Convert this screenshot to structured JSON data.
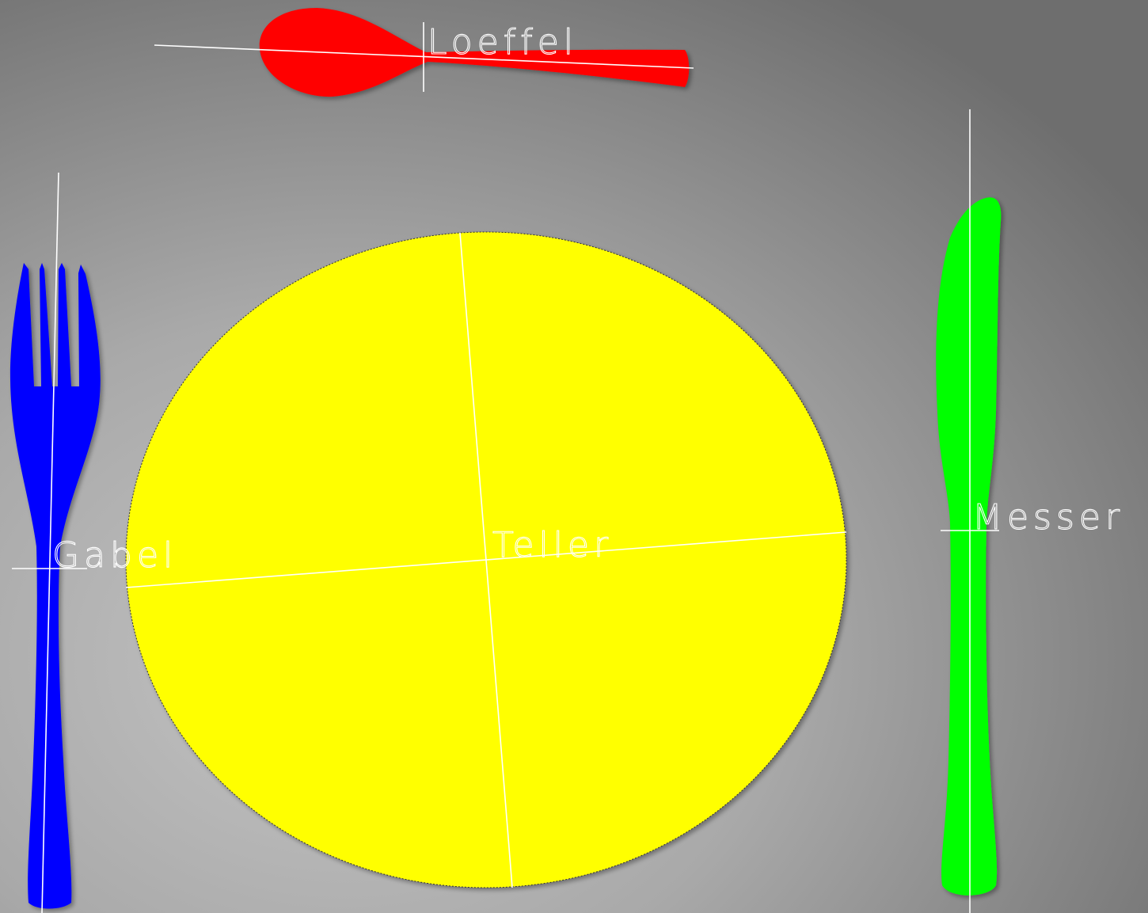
{
  "scene": {
    "background": {
      "center_color": "#c4c4c4",
      "mid_color": "#a9a9a9",
      "edge_color": "#6e6e6e"
    },
    "annotation_color": "#ffffff",
    "objects": [
      {
        "id": "spoon",
        "label": "Loeffel",
        "color": "#ff0000",
        "icon": "spoon-icon"
      },
      {
        "id": "fork",
        "label": "Gabel",
        "color": "#0000ff",
        "icon": "fork-icon"
      },
      {
        "id": "plate",
        "label": "Teller",
        "color": "#ffff00",
        "icon": "plate-icon"
      },
      {
        "id": "knife",
        "label": "Messer",
        "color": "#00ff00",
        "icon": "knife-icon"
      }
    ]
  }
}
